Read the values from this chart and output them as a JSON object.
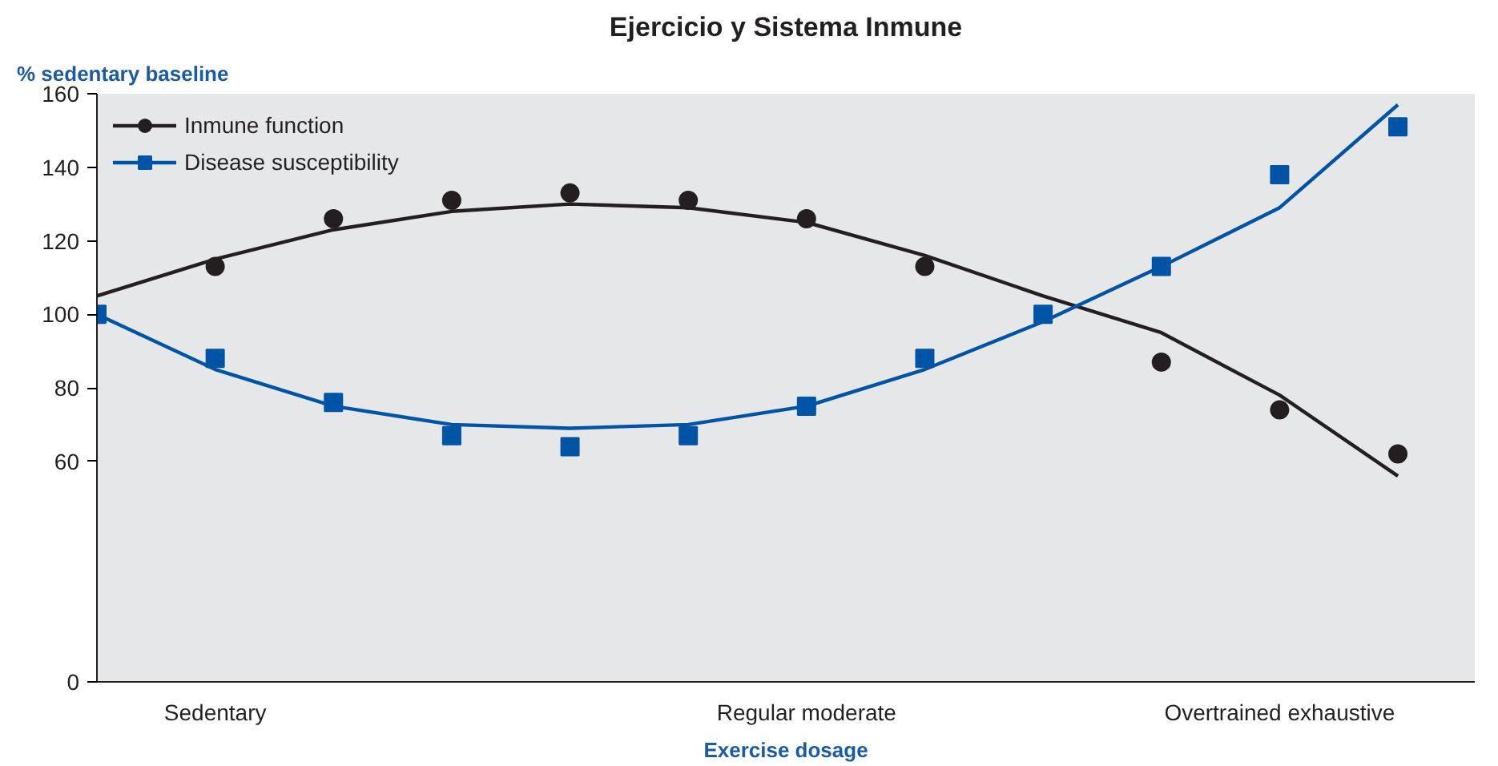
{
  "chart_data": {
    "type": "scatter",
    "title": "Ejercicio y Sistema Inmune",
    "ylabel": "% sedentary baseline",
    "xlabel": "Exercise dosage",
    "categories": [
      null,
      "Sedentary",
      null,
      null,
      null,
      null,
      "Regular moderate",
      null,
      null,
      null,
      "Overtrained exhaustive",
      null
    ],
    "ylim": [
      0,
      160
    ],
    "yticks": [
      0,
      60,
      80,
      100,
      120,
      140,
      160
    ],
    "legend": "top left",
    "series": [
      {
        "name": "Inmune function",
        "color": "#231f20",
        "marker": "circle",
        "values": [
          null,
          113,
          126,
          131,
          133,
          131,
          126,
          113,
          null,
          87,
          74,
          62
        ]
      },
      {
        "name": "Disease susceptibility",
        "color": "#0054a6",
        "marker": "square",
        "values": [
          100,
          88,
          76,
          67,
          64,
          67,
          75,
          88,
          100,
          113,
          138,
          151
        ]
      },
      {
        "type": "line",
        "color": "#231f20",
        "values": [
          105,
          115,
          123,
          128,
          130,
          129,
          125,
          116,
          105,
          95,
          78,
          56
        ]
      },
      {
        "type": "line",
        "color": "#0054a6",
        "values": [
          100,
          85,
          75,
          70,
          69,
          70,
          75,
          85,
          98,
          113,
          129,
          157
        ]
      }
    ]
  }
}
